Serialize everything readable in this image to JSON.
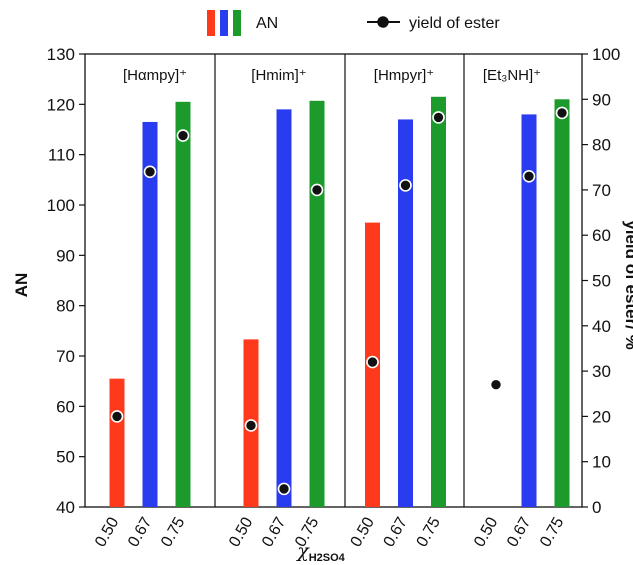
{
  "chart_data": {
    "type": "bar",
    "legend": {
      "an_label": "AN",
      "yield_label": "yield of ester",
      "placement": "top-center"
    },
    "colors": {
      "0.50": "#ff3a1c",
      "0.67": "#2a3cf0",
      "0.75": "#1c9b2c"
    },
    "groups": [
      {
        "label": "[Hαmpy]⁺",
        "an": [
          65.5,
          116.5,
          120.5
        ],
        "yield": [
          20,
          74,
          82
        ]
      },
      {
        "label": "[Hmim]⁺",
        "an": [
          73.3,
          119.0,
          120.7
        ],
        "yield": [
          18,
          4,
          70
        ]
      },
      {
        "label": "[Hmpyr]⁺",
        "an": [
          96.5,
          117.0,
          121.5
        ],
        "yield": [
          32,
          71,
          86
        ]
      },
      {
        "label": "[Et₃NH]⁺",
        "an": [
          null,
          118.0,
          121.0
        ],
        "yield": [
          27,
          73,
          87
        ]
      }
    ],
    "x_ticks": [
      "0.50",
      "0.67",
      "0.75"
    ],
    "xlabel": "χH2SO4",
    "ylabel_left": "AN",
    "ylabel_right": "yield of ester/ %",
    "ylim_left": [
      40,
      130
    ],
    "ylim_right": [
      0,
      100
    ],
    "yticks_left": [
      40,
      50,
      60,
      70,
      80,
      90,
      100,
      110,
      120,
      130
    ],
    "yticks_right": [
      0,
      10,
      20,
      30,
      40,
      50,
      60,
      70,
      80,
      90,
      100
    ]
  }
}
